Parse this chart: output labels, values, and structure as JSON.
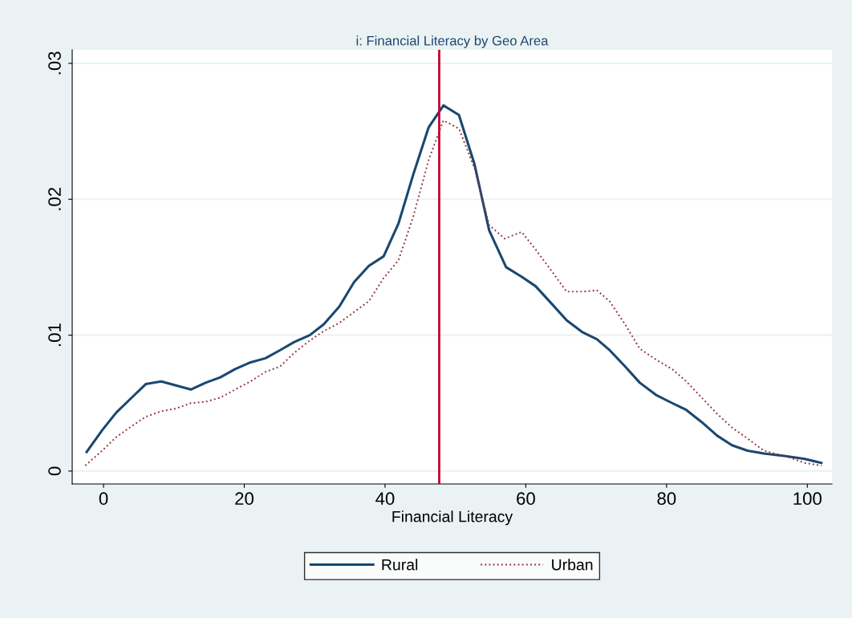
{
  "chart_data": {
    "type": "line",
    "title": "i: Financial Literacy by Geo Area",
    "xlabel": "Financial Literacy",
    "xlim": [
      -4.45,
      103.5
    ],
    "ylim": [
      -0.00095,
      0.031
    ],
    "xticks": [
      0,
      20,
      40,
      60,
      80,
      100
    ],
    "yticks": [
      {
        "value": 0,
        "label": "0"
      },
      {
        "value": 0.01,
        "label": ".01"
      },
      {
        "value": 0.02,
        "label": ".02"
      },
      {
        "value": 0.03,
        "label": ".03"
      }
    ],
    "grid": "y",
    "legend": "bottom",
    "ref_lines": [
      {
        "axis": "x",
        "value": 47.7,
        "color": "#c10534",
        "line_style": "solid"
      }
    ],
    "series": [
      {
        "name": "Rural",
        "color": "#1a476f",
        "line_style": "solid",
        "x": [
          -2.4,
          -0.2,
          1.8,
          4.0,
          6.0,
          8.2,
          10.3,
          12.4,
          14.5,
          16.6,
          18.7,
          20.9,
          23.0,
          25.1,
          27.1,
          29.3,
          31.3,
          33.5,
          35.6,
          37.7,
          39.8,
          41.9,
          44.0,
          46.2,
          48.3,
          50.5,
          52.7,
          54.8,
          57.2,
          59.4,
          61.4,
          63.7,
          65.8,
          68.1,
          70.1,
          71.9,
          74.1,
          76.2,
          78.5,
          80.8,
          82.8,
          85.0,
          87.2,
          89.3,
          91.5,
          93.8,
          96.9,
          99.6,
          102.0
        ],
        "values": [
          0.0014,
          0.003,
          0.0043,
          0.0054,
          0.0064,
          0.0066,
          0.0063,
          0.006,
          0.0065,
          0.0069,
          0.0075,
          0.008,
          0.0083,
          0.0089,
          0.0095,
          0.01,
          0.0108,
          0.0121,
          0.0139,
          0.0151,
          0.0158,
          0.0182,
          0.0218,
          0.0253,
          0.0269,
          0.0262,
          0.0226,
          0.0177,
          0.015,
          0.0143,
          0.0136,
          0.0123,
          0.0111,
          0.0102,
          0.0097,
          0.0089,
          0.0077,
          0.0065,
          0.0056,
          0.005,
          0.0045,
          0.0036,
          0.0026,
          0.0019,
          0.0015,
          0.0013,
          0.0011,
          0.0009,
          0.0006
        ]
      },
      {
        "name": "Urban",
        "color": "#90353b",
        "line_style": "dotted",
        "x": [
          -2.6,
          -0.2,
          1.8,
          4.0,
          6.0,
          8.2,
          10.3,
          12.4,
          14.5,
          16.6,
          18.7,
          20.9,
          23.0,
          25.1,
          27.1,
          29.3,
          31.3,
          33.5,
          35.6,
          37.7,
          39.8,
          41.9,
          44.0,
          46.2,
          48.3,
          50.5,
          52.7,
          54.8,
          57.0,
          59.4,
          61.4,
          63.7,
          65.8,
          68.1,
          70.1,
          71.9,
          74.1,
          76.2,
          78.5,
          80.8,
          82.8,
          85.0,
          87.2,
          89.3,
          91.5,
          93.8,
          96.9,
          99.6,
          102.0
        ],
        "values": [
          0.0004,
          0.0015,
          0.0025,
          0.0033,
          0.004,
          0.0044,
          0.0046,
          0.005,
          0.0051,
          0.0054,
          0.006,
          0.0066,
          0.0073,
          0.0077,
          0.0087,
          0.0096,
          0.0103,
          0.0109,
          0.0117,
          0.0125,
          0.0142,
          0.0155,
          0.0187,
          0.0229,
          0.0258,
          0.0252,
          0.0223,
          0.0181,
          0.0171,
          0.0176,
          0.0163,
          0.0147,
          0.0132,
          0.0132,
          0.0133,
          0.0125,
          0.0108,
          0.009,
          0.0082,
          0.0075,
          0.0066,
          0.0054,
          0.0042,
          0.0032,
          0.0024,
          0.0015,
          0.0011,
          0.0006,
          0.0004
        ]
      }
    ]
  }
}
